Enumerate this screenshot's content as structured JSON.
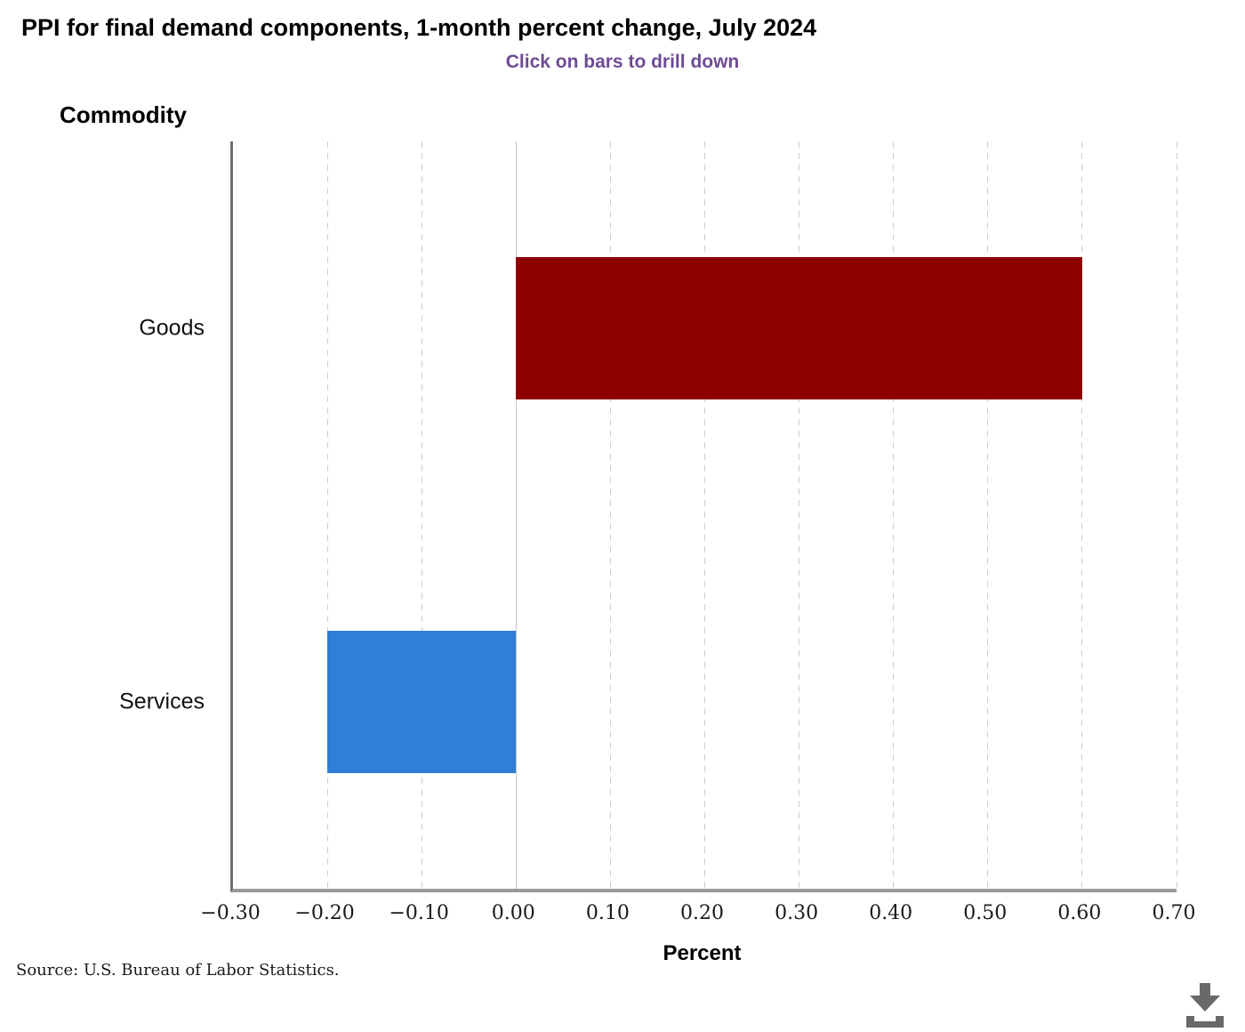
{
  "chart_data": {
    "type": "bar",
    "orientation": "horizontal",
    "title": "PPI for final demand components, 1-month percent change, July 2024",
    "subtitle": "Click on bars to drill down",
    "categories": [
      "Goods",
      "Services"
    ],
    "values": [
      0.6,
      -0.2
    ],
    "bar_colors": [
      "#8e0000",
      "#2f7ed8"
    ],
    "xlabel": "Percent",
    "ylabel": "Commodity",
    "xlim": [
      -0.3,
      0.7
    ],
    "xticks": [
      -0.3,
      -0.2,
      -0.1,
      0,
      0.1,
      0.2,
      0.3,
      0.4,
      0.5,
      0.6,
      0.7
    ],
    "xtick_labels": [
      "−0.30",
      "−0.20",
      "−0.10",
      "0.00",
      "0.10",
      "0.20",
      "0.30",
      "0.40",
      "0.50",
      "0.60",
      "0.70"
    ],
    "grid": "vertical gridlines, dashed; solid line at zero; no legend",
    "legend": "none"
  },
  "footer": {
    "source": "Source: U.S. Bureau of Labor Statistics."
  },
  "icons": {
    "download": "download-icon"
  },
  "colors": {
    "goods_bar": "#8e0000",
    "services_bar": "#2f7ed8",
    "subtitle_text": "#6e4b96",
    "gridline": "#cdcdcd",
    "zero_line": "#c4c4c4",
    "y_axis_line": "#6f6f6f",
    "x_axis_line": "#9a9a9a",
    "download_icon": "#696969"
  }
}
